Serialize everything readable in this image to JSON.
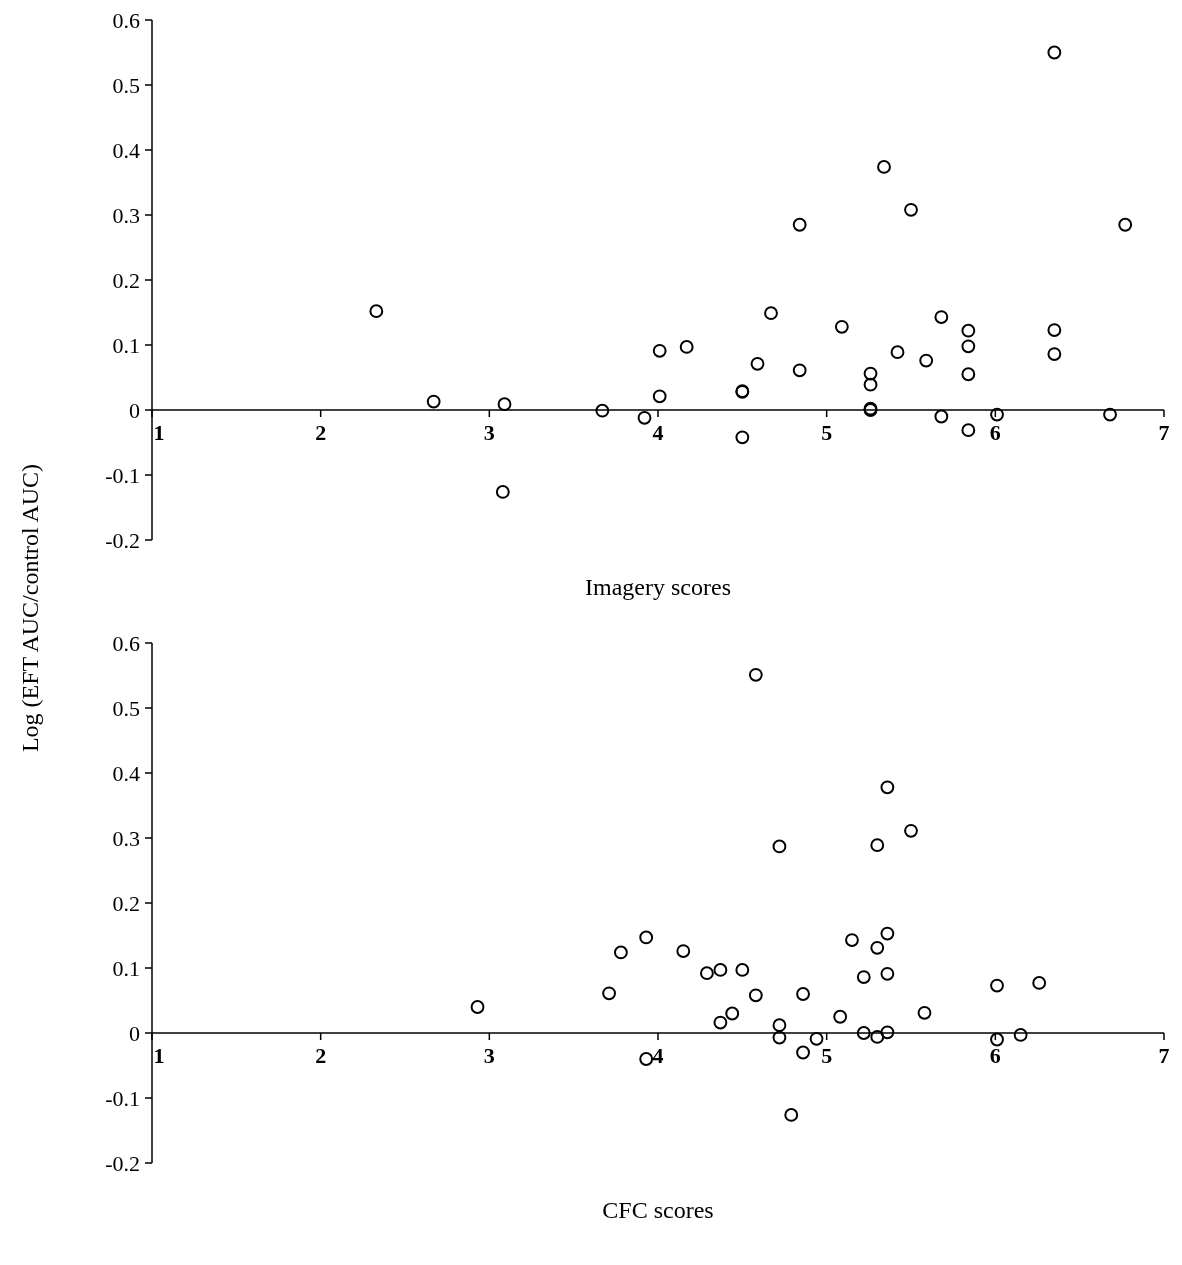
{
  "chart_data": [
    {
      "type": "scatter",
      "xlabel": "Imagery scores",
      "ylabel": "Log (EFT AUC/control AUC)",
      "marker": "circle",
      "grid": false,
      "xlim": [
        1,
        7
      ],
      "xticks": [
        1,
        2,
        3,
        4,
        5,
        6,
        7
      ],
      "ylim": [
        -0.2,
        0.6
      ],
      "yticks": [
        -0.2,
        -0.1,
        0,
        0.1,
        0.2,
        0.3,
        0.4,
        0.5,
        0.6
      ],
      "series": [
        {
          "color": "#000000",
          "x": [
            2.33,
            2.67,
            3.09,
            3.08,
            3.67,
            3.92,
            4.01,
            4.01,
            4.17,
            4.5,
            4.5,
            4.5,
            4.59,
            4.67,
            4.84,
            4.84,
            5.09,
            5.26,
            5.26,
            5.26,
            5.26,
            5.34,
            5.42,
            5.5,
            5.59,
            5.68,
            5.68,
            5.84,
            5.84,
            5.84,
            5.84,
            6.01,
            6.35,
            6.35,
            6.35,
            6.68,
            6.77
          ],
          "values": [
            0.152,
            0.013,
            0.009,
            -0.126,
            -0.001,
            -0.012,
            0.091,
            0.021,
            0.097,
            0.028,
            0.029,
            -0.042,
            0.071,
            0.149,
            0.285,
            0.061,
            0.128,
            0.056,
            0.039,
            0.0,
            0.002,
            0.374,
            0.089,
            0.308,
            0.076,
            0.143,
            -0.01,
            0.122,
            0.098,
            0.055,
            -0.031,
            -0.007,
            0.55,
            0.123,
            0.086,
            -0.007,
            0.285
          ]
        }
      ]
    },
    {
      "type": "scatter",
      "xlabel": "CFC scores",
      "marker": "circle",
      "grid": false,
      "xlim": [
        1,
        7
      ],
      "xticks": [
        1,
        2,
        3,
        4,
        5,
        6,
        7
      ],
      "ylim": [
        -0.2,
        0.6
      ],
      "yticks": [
        -0.2,
        -0.1,
        0,
        0.1,
        0.2,
        0.3,
        0.4,
        0.5,
        0.6
      ],
      "series": [
        {
          "color": "#000000",
          "x": [
            2.93,
            3.71,
            3.78,
            3.93,
            3.93,
            4.15,
            4.29,
            4.37,
            4.37,
            4.44,
            4.5,
            4.58,
            4.58,
            4.72,
            4.72,
            4.72,
            4.79,
            4.86,
            4.86,
            4.94,
            5.08,
            5.15,
            5.22,
            5.22,
            5.3,
            5.3,
            5.3,
            5.36,
            5.36,
            5.36,
            5.36,
            5.5,
            5.58,
            6.01,
            6.01,
            6.15,
            6.26
          ],
          "values": [
            0.04,
            0.061,
            0.124,
            0.147,
            -0.04,
            0.126,
            0.092,
            0.097,
            0.016,
            0.03,
            0.097,
            0.551,
            0.058,
            0.287,
            0.012,
            -0.007,
            -0.126,
            0.06,
            -0.03,
            -0.009,
            0.025,
            0.143,
            0.086,
            0.0,
            0.131,
            0.289,
            -0.006,
            0.378,
            0.153,
            0.091,
            0.001,
            0.311,
            0.031,
            0.073,
            -0.01,
            -0.003,
            0.077
          ]
        }
      ]
    }
  ]
}
